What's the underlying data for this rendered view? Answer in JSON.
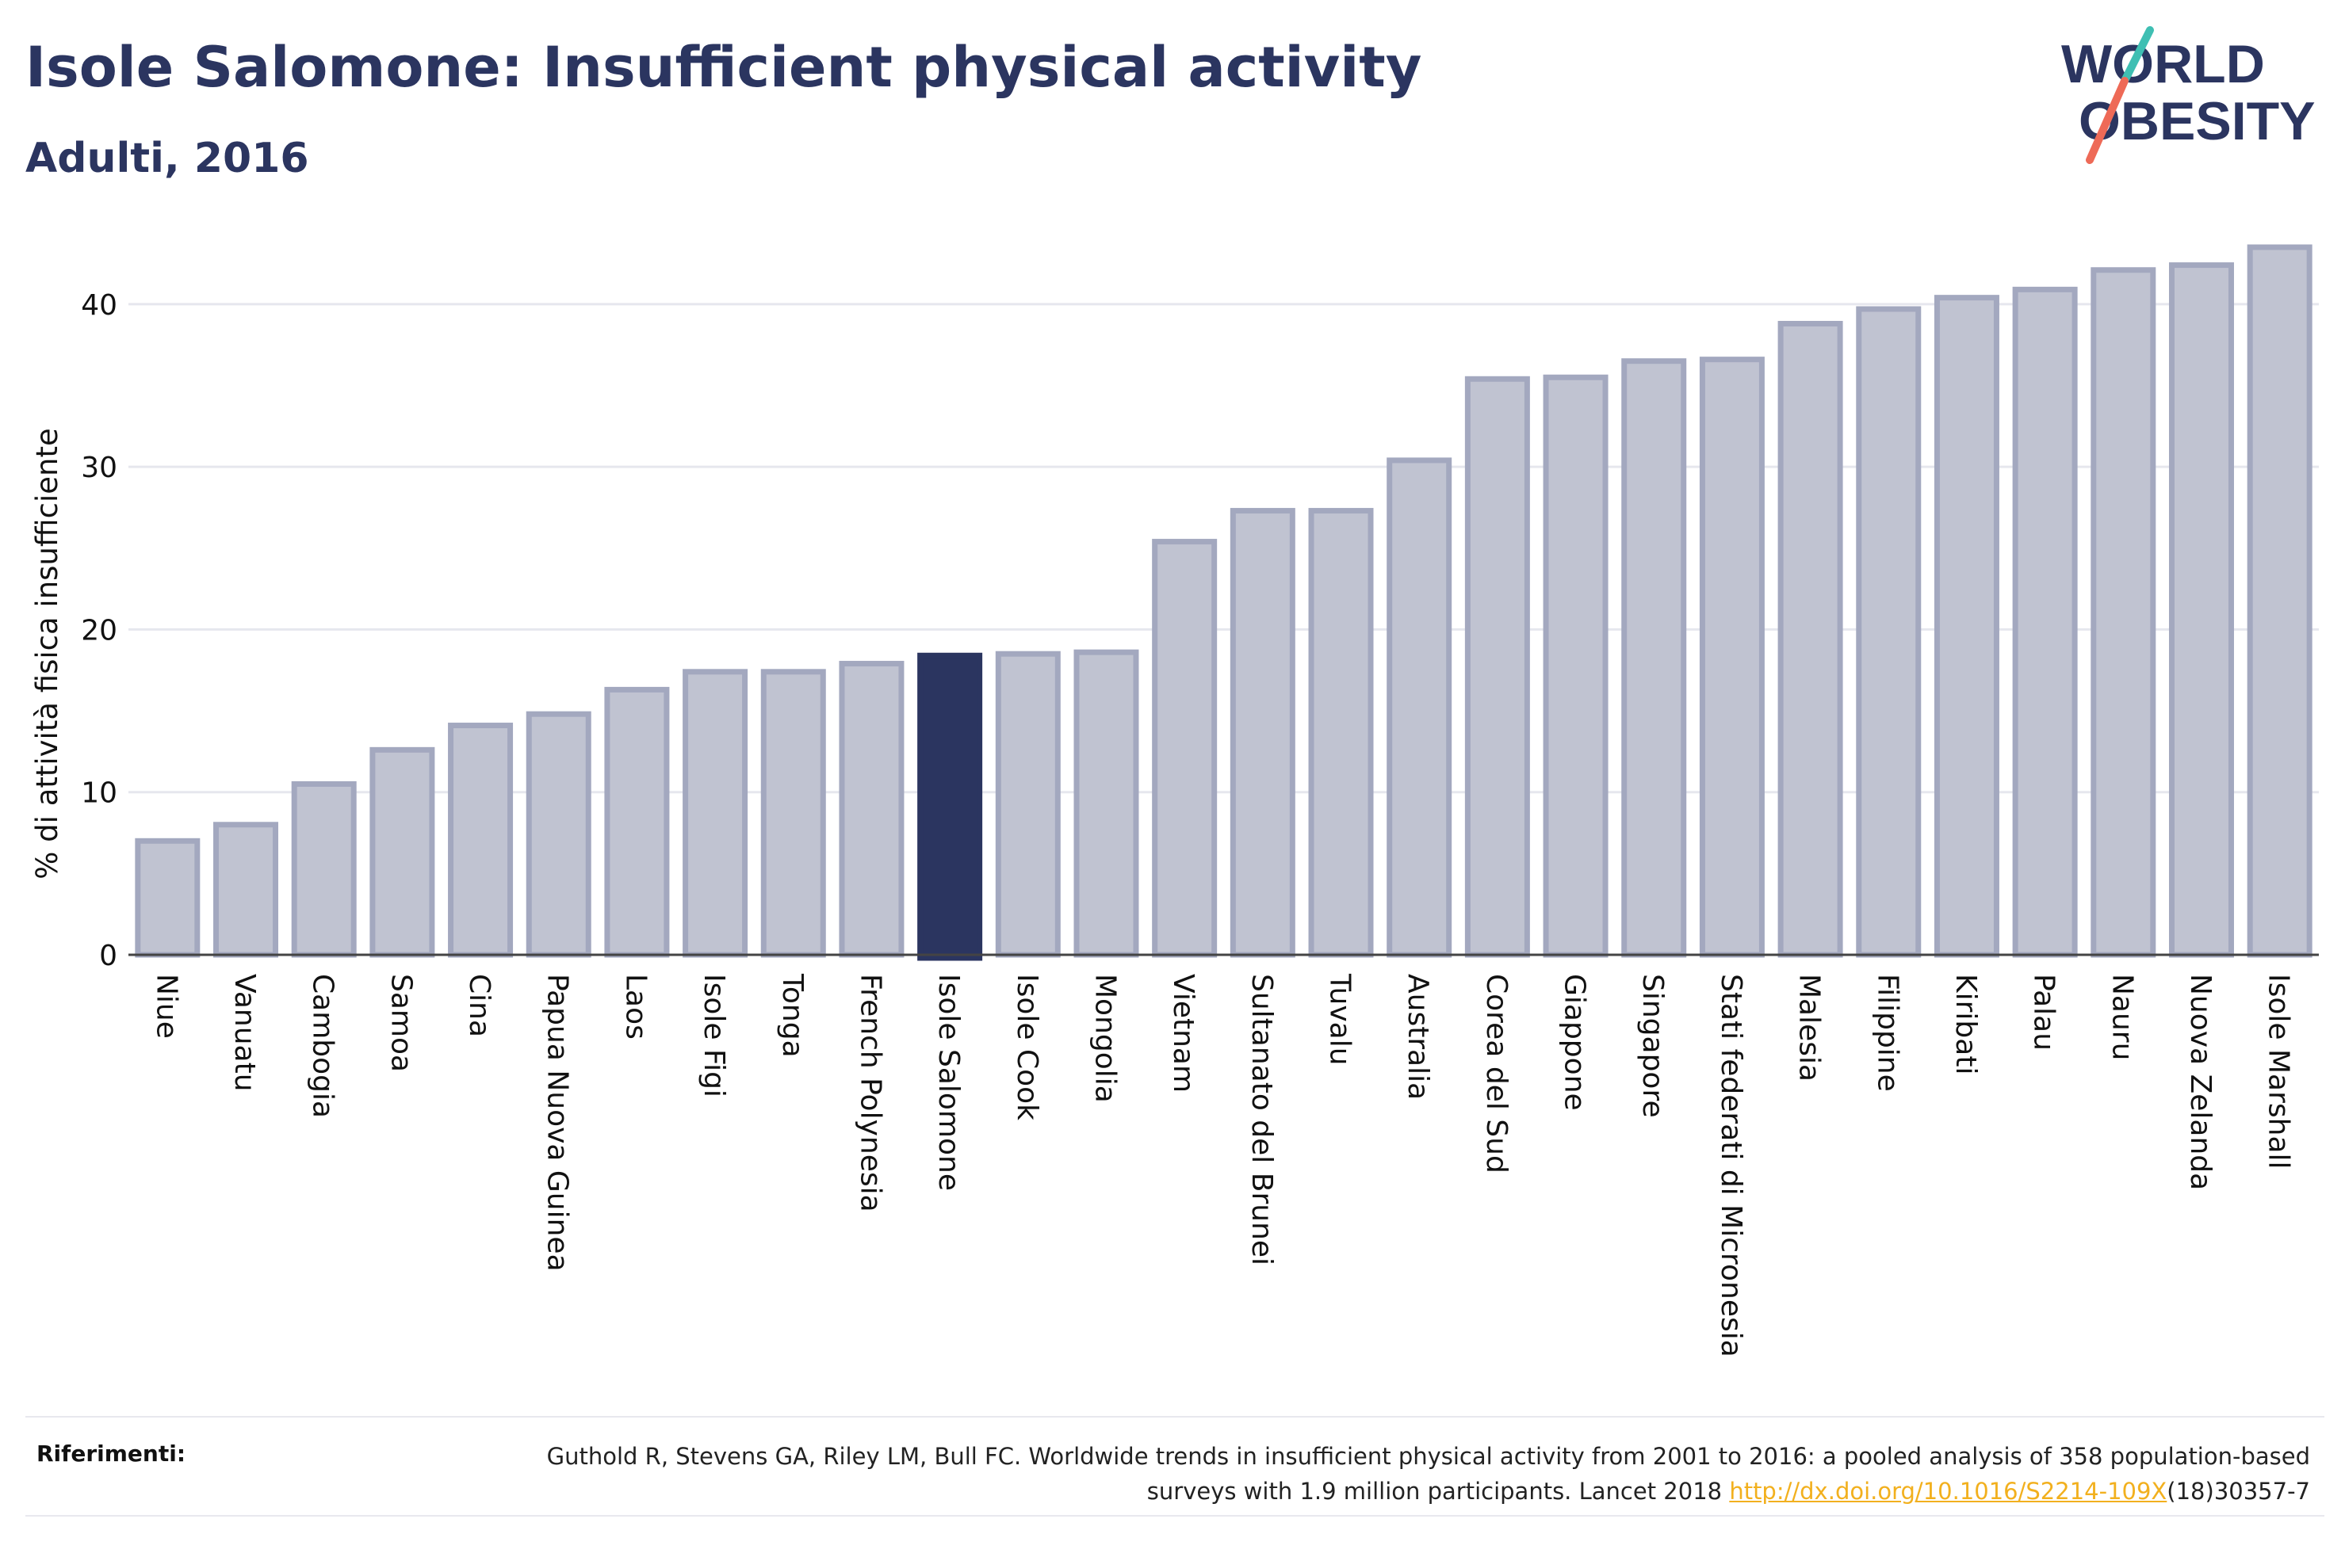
{
  "header": {
    "title": "Isole Salomone: Insufficient physical activity",
    "subtitle": "Adulti, 2016"
  },
  "logo": {
    "line1": "WORLD",
    "line2": "OBESITY",
    "colors": {
      "text": "#2b3560",
      "slash_teal": "#3fbfb3",
      "slash_coral": "#ee6a57"
    }
  },
  "chart_data": {
    "type": "bar",
    "title": "Isole Salomone: Insufficient physical activity",
    "subtitle": "Adulti, 2016",
    "xlabel": "",
    "ylabel": "% di attività fisica insufficiente",
    "ylim": [
      0,
      45
    ],
    "yticks": [
      0,
      10,
      20,
      30,
      40
    ],
    "grid": true,
    "highlight": "Isole Salomone",
    "colors": {
      "bar": "#c0c3d1",
      "bar_border": "#a3a8bf",
      "highlight": "#2b3560",
      "grid": "#e6e7ee",
      "axis": "#444444"
    },
    "categories": [
      "Niue",
      "Vanuatu",
      "Cambogia",
      "Samoa",
      "Cina",
      "Papua Nuova Guinea",
      "Laos",
      "Isole Figi",
      "Tonga",
      "French Polynesia",
      "Isole Salomone",
      "Isole Cook",
      "Mongolia",
      "Vietnam",
      "Sultanato del Brunei",
      "Tuvalu",
      "Australia",
      "Corea del Sud",
      "Giappone",
      "Singapore",
      "Stati federati di Micronesia",
      "Malesia",
      "Filippine",
      "Kiribati",
      "Palau",
      "Nauru",
      "Nuova Zelanda",
      "Isole Marshall"
    ],
    "values": [
      7.0,
      8.0,
      10.5,
      12.6,
      14.1,
      14.8,
      16.3,
      17.4,
      17.4,
      17.9,
      18.4,
      18.5,
      18.6,
      25.4,
      27.3,
      27.3,
      30.4,
      35.4,
      35.5,
      36.5,
      36.6,
      38.8,
      39.7,
      40.4,
      40.9,
      42.1,
      42.4,
      43.5
    ]
  },
  "references": {
    "label": "Riferimenti:",
    "text_before": "Guthold R, Stevens GA, Riley LM, Bull FC. Worldwide trends in insufficient physical activity from 2001 to 2016: a pooled analysis of 358 population-based surveys with 1.9 million participants. Lancet 2018 ",
    "link_text": "http://dx.doi.org/10.1016/S2214-109X",
    "text_after": "(18)30357-7"
  }
}
